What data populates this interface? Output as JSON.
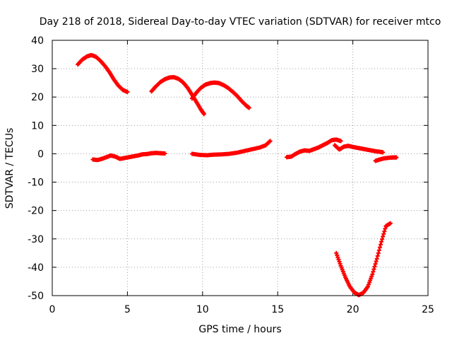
{
  "chart_data": {
    "type": "scatter",
    "title": "Day 218 of 2018, Sidereal Day-to-day VTEC variation (SDTVAR) for receiver mtco",
    "xlabel": "GPS time / hours",
    "ylabel": "SDTVAR / TECUs",
    "xlim": [
      0,
      25
    ],
    "ylim": [
      -50,
      40
    ],
    "xticks": [
      0,
      5,
      10,
      15,
      20,
      25
    ],
    "yticks": [
      -50,
      -40,
      -30,
      -20,
      -10,
      0,
      10,
      20,
      30,
      40
    ],
    "grid": true,
    "grid_style": "dotted",
    "legend": "none",
    "marker": "plus",
    "color": "#ff0000",
    "series": [
      {
        "x": [
          1.7,
          2.0,
          2.3,
          2.6,
          2.9,
          3.2,
          3.5,
          3.8,
          4.1,
          4.4,
          4.7,
          5.0
        ],
        "y": [
          31.5,
          33.2,
          34.3,
          34.8,
          34.2,
          32.8,
          31.0,
          28.8,
          26.2,
          24.0,
          22.5,
          21.8
        ]
      },
      {
        "x": [
          2.7,
          3.0,
          3.3,
          3.6,
          3.9,
          4.2,
          4.5,
          4.8,
          5.1,
          5.4,
          5.7,
          6.0,
          6.3,
          6.6,
          6.9,
          7.2,
          7.5
        ],
        "y": [
          -2.0,
          -2.2,
          -1.8,
          -1.2,
          -0.6,
          -1.0,
          -1.8,
          -1.5,
          -1.2,
          -0.9,
          -0.6,
          -0.2,
          -0.1,
          0.2,
          0.3,
          0.2,
          0.1
        ]
      },
      {
        "x": [
          6.6,
          6.9,
          7.2,
          7.5,
          7.8,
          8.1,
          8.4,
          8.7,
          9.0,
          9.3,
          9.6,
          9.9,
          10.1
        ],
        "y": [
          22.0,
          23.8,
          25.3,
          26.3,
          26.9,
          27.0,
          26.4,
          25.2,
          23.3,
          20.8,
          18.2,
          15.5,
          14.0
        ]
      },
      {
        "x": [
          9.3,
          9.6,
          9.9,
          10.2,
          10.5,
          10.8,
          11.1,
          11.4,
          11.7,
          12.0,
          12.3,
          12.6,
          12.9,
          13.1
        ],
        "y": [
          19.5,
          21.6,
          23.3,
          24.4,
          24.9,
          25.1,
          24.9,
          24.2,
          23.2,
          21.9,
          20.4,
          18.6,
          17.0,
          16.2
        ]
      },
      {
        "x": [
          9.3,
          9.8,
          10.3,
          10.8,
          11.3,
          11.8,
          12.3,
          12.8,
          13.3,
          13.8,
          14.2,
          14.5
        ],
        "y": [
          0.0,
          -0.4,
          -0.5,
          -0.3,
          -0.2,
          0.0,
          0.4,
          1.0,
          1.6,
          2.2,
          3.0,
          4.5
        ]
      },
      {
        "x": [
          15.6,
          15.9,
          16.2,
          16.5,
          16.8,
          17.1,
          17.4,
          17.7,
          18.0,
          18.3,
          18.6,
          18.9,
          19.2
        ],
        "y": [
          -1.2,
          -1.0,
          0.0,
          0.8,
          1.2,
          1.0,
          1.6,
          2.2,
          3.0,
          3.8,
          4.8,
          5.0,
          4.5
        ]
      },
      {
        "x": [
          18.8,
          19.1,
          19.4,
          19.7,
          20.0,
          20.3,
          20.6,
          20.9,
          21.2,
          21.5,
          21.8,
          22.0
        ],
        "y": [
          3.0,
          1.5,
          2.5,
          2.8,
          2.4,
          2.1,
          1.8,
          1.5,
          1.2,
          0.9,
          0.7,
          0.5
        ]
      },
      {
        "x": [
          21.5,
          21.8,
          22.1,
          22.4,
          22.7,
          22.9
        ],
        "y": [
          -2.5,
          -2.0,
          -1.6,
          -1.4,
          -1.3,
          -1.3
        ]
      },
      {
        "x": [
          18.9,
          19.2,
          19.5,
          19.8,
          20.1,
          20.4,
          20.7,
          21.0,
          21.3,
          21.6,
          21.9,
          22.2,
          22.5
        ],
        "y": [
          -35.0,
          -39.5,
          -43.5,
          -46.8,
          -48.9,
          -49.8,
          -49.0,
          -46.8,
          -42.5,
          -37.0,
          -31.0,
          -25.5,
          -24.5
        ]
      }
    ]
  }
}
